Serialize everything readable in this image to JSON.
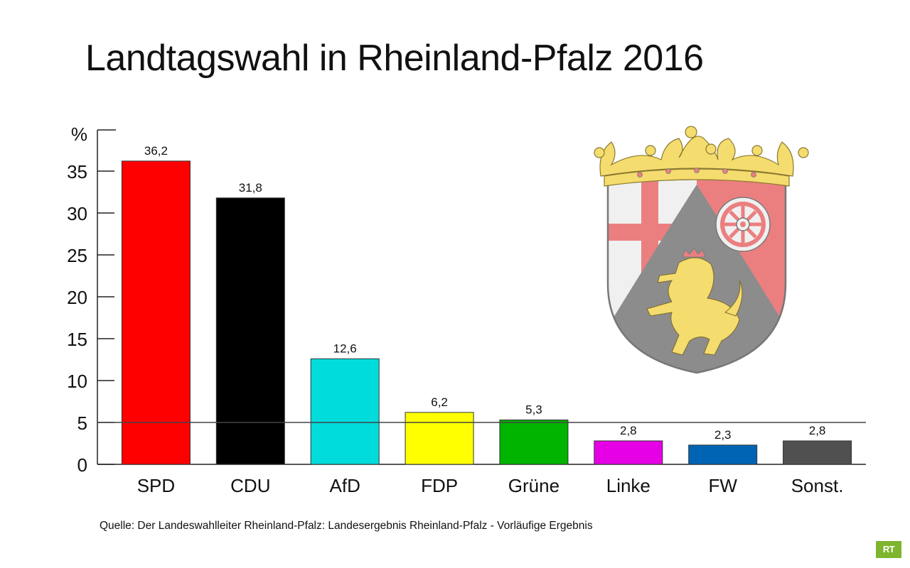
{
  "title": "Landtagswahl in Rheinland-Pfalz 2016",
  "source": "Quelle: Der Landeswahlleiter Rheinland-Pfalz: Landesergebnis Rheinland-Pfalz - Vorläufige Ergebnis",
  "logo_text": "RT",
  "chart_data": {
    "type": "bar",
    "title": "Landtagswahl in Rheinland-Pfalz 2016",
    "xlabel": "",
    "ylabel": "%",
    "ylim": [
      0,
      40
    ],
    "yticks": [
      0,
      5,
      10,
      15,
      20,
      25,
      30,
      35
    ],
    "reference_line": 5,
    "grid": false,
    "categories": [
      "SPD",
      "CDU",
      "AfD",
      "FDP",
      "Grüne",
      "Linke",
      "FW",
      "Sonst."
    ],
    "values": [
      36.2,
      31.8,
      12.6,
      6.2,
      5.3,
      2.8,
      2.3,
      2.8
    ],
    "value_labels": [
      "36,2",
      "31,8",
      "12,6",
      "6,2",
      "5,3",
      "2,8",
      "2,3",
      "2,8"
    ],
    "colors": [
      "#ff0000",
      "#000000",
      "#00dcdc",
      "#ffff00",
      "#00b400",
      "#e600e6",
      "#0064b4",
      "#505050"
    ]
  },
  "coat_of_arms": {
    "icon": "rheinland-pfalz-coat-of-arms-icon",
    "colors": {
      "crown": "#f5dc6e",
      "red": "#eb7f80",
      "silver": "#f0f0f0",
      "black": "#8c8c8c",
      "gold_lion": "#f5dc6e"
    }
  }
}
